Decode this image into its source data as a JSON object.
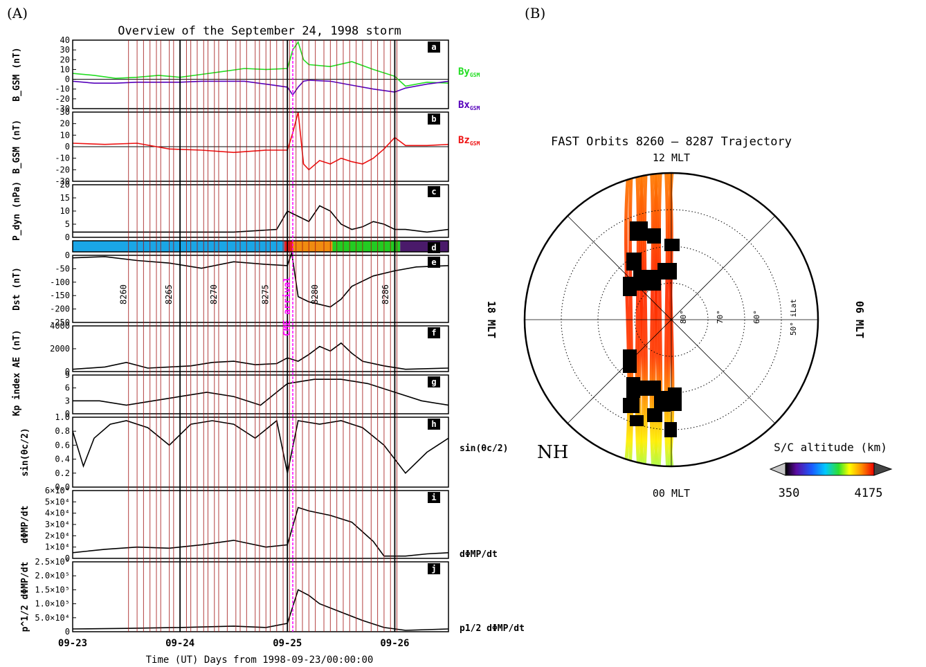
{
  "figure": {
    "label_a": "(A)",
    "label_b": "(B)",
    "title_a": "Overview of the September 24, 1998 storm",
    "title_b": "FAST Orbits 8260 – 8287 Trajectory"
  },
  "chart_data": [
    {
      "panel": "a",
      "type": "line",
      "ylabel": "B_GSM (nT)",
      "ylim": [
        -30,
        40
      ],
      "yticks": [
        "40",
        "30",
        "20",
        "10",
        "0",
        "-10",
        "-20",
        "-30"
      ],
      "series": [
        {
          "name": "By_GSM",
          "color": "#22dd22",
          "x": [
            0,
            0.2,
            0.4,
            0.6,
            0.8,
            1.0,
            1.2,
            1.4,
            1.6,
            1.8,
            2.0,
            2.05,
            2.1,
            2.15,
            2.2,
            2.4,
            2.6,
            2.8,
            3.0,
            3.1,
            3.3,
            3.5
          ],
          "values": [
            6,
            4,
            1,
            2,
            4,
            2,
            5,
            8,
            11,
            10,
            11,
            30,
            38,
            20,
            15,
            13,
            18,
            10,
            3,
            -7,
            -3,
            -4
          ]
        },
        {
          "name": "Bx_GSM",
          "color": "#5500bb",
          "x": [
            0,
            0.2,
            0.4,
            0.6,
            0.8,
            1.0,
            1.2,
            1.4,
            1.6,
            1.8,
            2.0,
            2.05,
            2.1,
            2.15,
            2.2,
            2.4,
            2.6,
            2.8,
            3.0,
            3.1,
            3.3,
            3.5
          ],
          "values": [
            -2,
            -4,
            -4,
            -3,
            -3,
            -3,
            -2,
            -2,
            -2,
            -5,
            -8,
            -16,
            -8,
            -2,
            -1,
            -2,
            -6,
            -10,
            -13,
            -9,
            -5,
            -2
          ]
        }
      ]
    },
    {
      "panel": "b",
      "type": "line",
      "ylabel": "B_GSM (nT)",
      "ylim": [
        -30,
        30
      ],
      "yticks": [
        "30",
        "20",
        "10",
        "0",
        "-10",
        "-20",
        "-30"
      ],
      "series": [
        {
          "name": "Bz_GSM",
          "color": "#ee1111",
          "x": [
            0,
            0.3,
            0.6,
            0.9,
            1.2,
            1.5,
            1.8,
            2.0,
            2.05,
            2.1,
            2.15,
            2.2,
            2.3,
            2.4,
            2.5,
            2.6,
            2.7,
            2.8,
            2.9,
            3.0,
            3.1,
            3.3,
            3.5
          ],
          "values": [
            3,
            2,
            3,
            -2,
            -3,
            -5,
            -3,
            -3,
            12,
            30,
            -15,
            -20,
            -12,
            -15,
            -10,
            -13,
            -15,
            -10,
            -2,
            8,
            1,
            1,
            2
          ]
        }
      ]
    },
    {
      "panel": "c",
      "type": "line",
      "ylabel": "P_dyn (nPa)",
      "ylim": [
        0,
        20
      ],
      "yticks": [
        "20",
        "15",
        "10",
        "5",
        "0"
      ],
      "series": [
        {
          "name": "",
          "color": "#000000",
          "x": [
            0,
            0.5,
            1.0,
            1.5,
            1.9,
            2.0,
            2.1,
            2.2,
            2.3,
            2.4,
            2.5,
            2.6,
            2.7,
            2.8,
            2.9,
            3.0,
            3.1,
            3.3,
            3.5
          ],
          "values": [
            2,
            2,
            2,
            2,
            3,
            10,
            8,
            6,
            12,
            10,
            5,
            3,
            4,
            6,
            5,
            3,
            3,
            2,
            3
          ]
        }
      ]
    },
    {
      "panel": "d",
      "type": "bar",
      "segments": [
        {
          "x0": 0,
          "x1": 1.97,
          "color": "#1aa6e6"
        },
        {
          "x0": 1.97,
          "x1": 2.05,
          "color": "#e82020"
        },
        {
          "x0": 2.05,
          "x1": 2.42,
          "color": "#f08c10"
        },
        {
          "x0": 2.42,
          "x1": 3.05,
          "color": "#22cc22"
        },
        {
          "x0": 3.05,
          "x1": 3.5,
          "color": "#4a1a6a"
        }
      ]
    },
    {
      "panel": "e",
      "type": "line",
      "ylabel": "Dst (nT)",
      "ylim": [
        -260,
        0
      ],
      "yticks": [
        "0",
        "-50",
        "-100",
        "-150",
        "-200",
        "-250"
      ],
      "annotations": [
        "8260",
        "8265",
        "8270",
        "8275",
        "8280",
        "8286"
      ],
      "cme_label": "CME arrival",
      "series": [
        {
          "name": "",
          "color": "#000000",
          "x": [
            0,
            0.3,
            0.6,
            0.9,
            1.2,
            1.5,
            1.8,
            2.0,
            2.04,
            2.1,
            2.2,
            2.4,
            2.5,
            2.6,
            2.8,
            3.0,
            3.2,
            3.5
          ],
          "values": [
            -10,
            -5,
            -20,
            -30,
            -50,
            -25,
            -35,
            -40,
            10,
            -160,
            -180,
            -200,
            -170,
            -120,
            -80,
            -60,
            -45,
            -40
          ]
        }
      ]
    },
    {
      "panel": "f",
      "type": "line",
      "ylabel": "AE (nT)",
      "ylim": [
        0,
        4000
      ],
      "yticks": [
        "4000",
        "2000",
        "0"
      ],
      "series": [
        {
          "name": "",
          "color": "#000000",
          "x": [
            0,
            0.3,
            0.5,
            0.7,
            0.9,
            1.1,
            1.3,
            1.5,
            1.7,
            1.9,
            2.0,
            2.1,
            2.2,
            2.3,
            2.4,
            2.5,
            2.6,
            2.7,
            2.9,
            3.1,
            3.5
          ],
          "values": [
            200,
            400,
            800,
            300,
            400,
            500,
            800,
            900,
            600,
            700,
            1200,
            900,
            1500,
            2200,
            1800,
            2500,
            1600,
            900,
            500,
            200,
            300
          ]
        }
      ]
    },
    {
      "panel": "g",
      "type": "line",
      "ylabel": "Kp index",
      "ylim": [
        0,
        9
      ],
      "yticks": [
        "9",
        "6",
        "3",
        "0"
      ],
      "series": [
        {
          "name": "",
          "color": "#000000",
          "x": [
            0,
            0.25,
            0.5,
            0.75,
            1.0,
            1.25,
            1.5,
            1.75,
            2.0,
            2.25,
            2.5,
            2.75,
            3.0,
            3.25,
            3.5
          ],
          "values": [
            3,
            3,
            2,
            3,
            4,
            5,
            4,
            2,
            7,
            8,
            8,
            7,
            5,
            3,
            2
          ]
        }
      ]
    },
    {
      "panel": "h",
      "type": "line",
      "ylabel": "sin(θc/2)",
      "ylim": [
        0,
        1
      ],
      "yticks": [
        "1.0",
        "0.8",
        "0.6",
        "0.4",
        "0.2",
        "0.0"
      ],
      "series": [
        {
          "name": "",
          "color": "#000000",
          "x": [
            0,
            0.1,
            0.2,
            0.35,
            0.5,
            0.7,
            0.9,
            1.1,
            1.3,
            1.5,
            1.7,
            1.9,
            2.0,
            2.1,
            2.3,
            2.5,
            2.7,
            2.9,
            3.1,
            3.3,
            3.5
          ],
          "values": [
            0.8,
            0.3,
            0.7,
            0.9,
            0.95,
            0.85,
            0.6,
            0.9,
            0.95,
            0.9,
            0.7,
            0.95,
            0.2,
            0.95,
            0.9,
            0.95,
            0.85,
            0.6,
            0.2,
            0.5,
            0.7
          ]
        }
      ]
    },
    {
      "panel": "i",
      "type": "line",
      "ylabel": "dΦMP/dt",
      "ylim": [
        0,
        60000
      ],
      "yticks": [
        "6×10⁴",
        "5×10⁴",
        "4×10⁴",
        "3×10⁴",
        "2×10⁴",
        "1×10⁴",
        "0"
      ],
      "series": [
        {
          "name": "",
          "color": "#000000",
          "x": [
            0,
            0.3,
            0.6,
            0.9,
            1.2,
            1.5,
            1.8,
            2.0,
            2.1,
            2.2,
            2.4,
            2.6,
            2.8,
            2.9,
            3.1,
            3.3,
            3.5
          ],
          "values": [
            5000,
            8000,
            10000,
            9000,
            12000,
            16000,
            10000,
            12000,
            45000,
            42000,
            38000,
            32000,
            15000,
            2000,
            2000,
            4000,
            5000
          ]
        }
      ]
    },
    {
      "panel": "j",
      "type": "line",
      "ylabel": "p^1/2 dΦMP/dt",
      "ylim": [
        0,
        250000
      ],
      "yticks": [
        "2.5×10⁵",
        "2.0×10⁵",
        "1.5×10⁵",
        "1.0×10⁵",
        "5.0×10⁴",
        "0"
      ],
      "series": [
        {
          "name": "",
          "color": "#000000",
          "x": [
            0,
            0.5,
            1.0,
            1.5,
            1.8,
            2.0,
            2.1,
            2.2,
            2.3,
            2.5,
            2.7,
            2.9,
            3.1,
            3.5
          ],
          "values": [
            10000,
            12000,
            15000,
            20000,
            15000,
            30000,
            150000,
            130000,
            100000,
            70000,
            40000,
            15000,
            5000,
            10000
          ]
        }
      ]
    }
  ],
  "axis": {
    "xticks": [
      {
        "x": 0,
        "label": "09-23"
      },
      {
        "x": 1,
        "label": "09-24"
      },
      {
        "x": 2,
        "label": "09-25"
      },
      {
        "x": 3,
        "label": "09-26"
      }
    ],
    "xlabel": "Time (UT) Days from 1998-09-23/00:00:00",
    "xmax": 3.5,
    "orbit_x": [
      0.52,
      0.6,
      0.66,
      0.72,
      0.78,
      0.82,
      0.9,
      0.94,
      1.0,
      1.06,
      1.1,
      1.16,
      1.22,
      1.26,
      1.32,
      1.36,
      1.44,
      1.52,
      1.56,
      1.62,
      1.7,
      1.74,
      1.8,
      1.84,
      1.9,
      1.96,
      2.02,
      2.08,
      2.14,
      2.2,
      2.26,
      2.34,
      2.4,
      2.46,
      2.52,
      2.58,
      2.64,
      2.7,
      2.78,
      2.84,
      2.9,
      2.96,
      3.02
    ],
    "cme_x": 2.05,
    "panel_letters": [
      "a",
      "b",
      "c",
      "d",
      "e",
      "f",
      "g",
      "h",
      "i",
      "j"
    ]
  },
  "side_labels": {
    "by": "By",
    "by_sub": "GSM",
    "bx": "Bx",
    "bx_sub": "GSM",
    "bz": "Bz",
    "bz_sub": "GSM",
    "sin": "sin(θc/2)",
    "dphi": "dΦMP/dt",
    "p12": "p1/2 dΦMP/dt"
  },
  "polar": {
    "mlt_top": "12 MLT",
    "mlt_bottom": "00 MLT",
    "mlt_left": "18 MLT",
    "mlt_right": "06 MLT",
    "lat_labels": [
      "80°",
      "70°",
      "60°",
      "50° iLat"
    ],
    "hemisphere": "NH",
    "colorbar_title": "S/C altitude (km)",
    "colorbar_min": "350",
    "colorbar_max": "4175"
  }
}
